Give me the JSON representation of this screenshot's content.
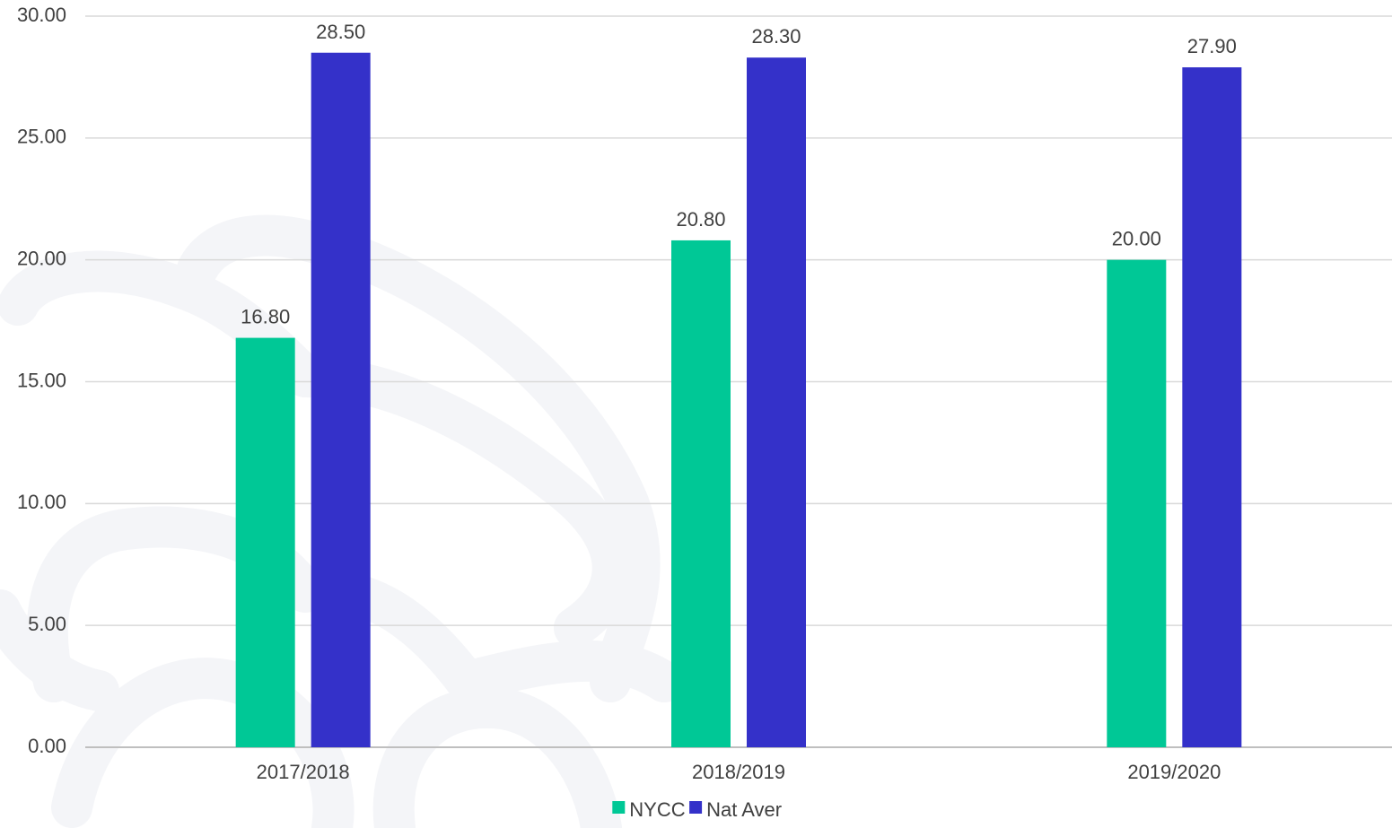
{
  "chart_data": {
    "type": "bar",
    "categories": [
      "2017/2018",
      "2018/2019",
      "2019/2020"
    ],
    "series": [
      {
        "name": "NYCC",
        "values": [
          16.8,
          20.8,
          20.0
        ],
        "color": "#00c896"
      },
      {
        "name": "Nat Aver",
        "values": [
          28.5,
          28.3,
          27.9
        ],
        "color": "#3431c9"
      }
    ],
    "ylim": [
      0,
      30
    ],
    "yticks": [
      0,
      5,
      10,
      15,
      20,
      25,
      30
    ],
    "tick_format_decimals": 2,
    "data_labels": true,
    "grid": true,
    "legend_position": "bottom",
    "gridline_color": "#d9d9d9",
    "axis_line_color": "#bfbfbf",
    "text_color": "#404040"
  }
}
